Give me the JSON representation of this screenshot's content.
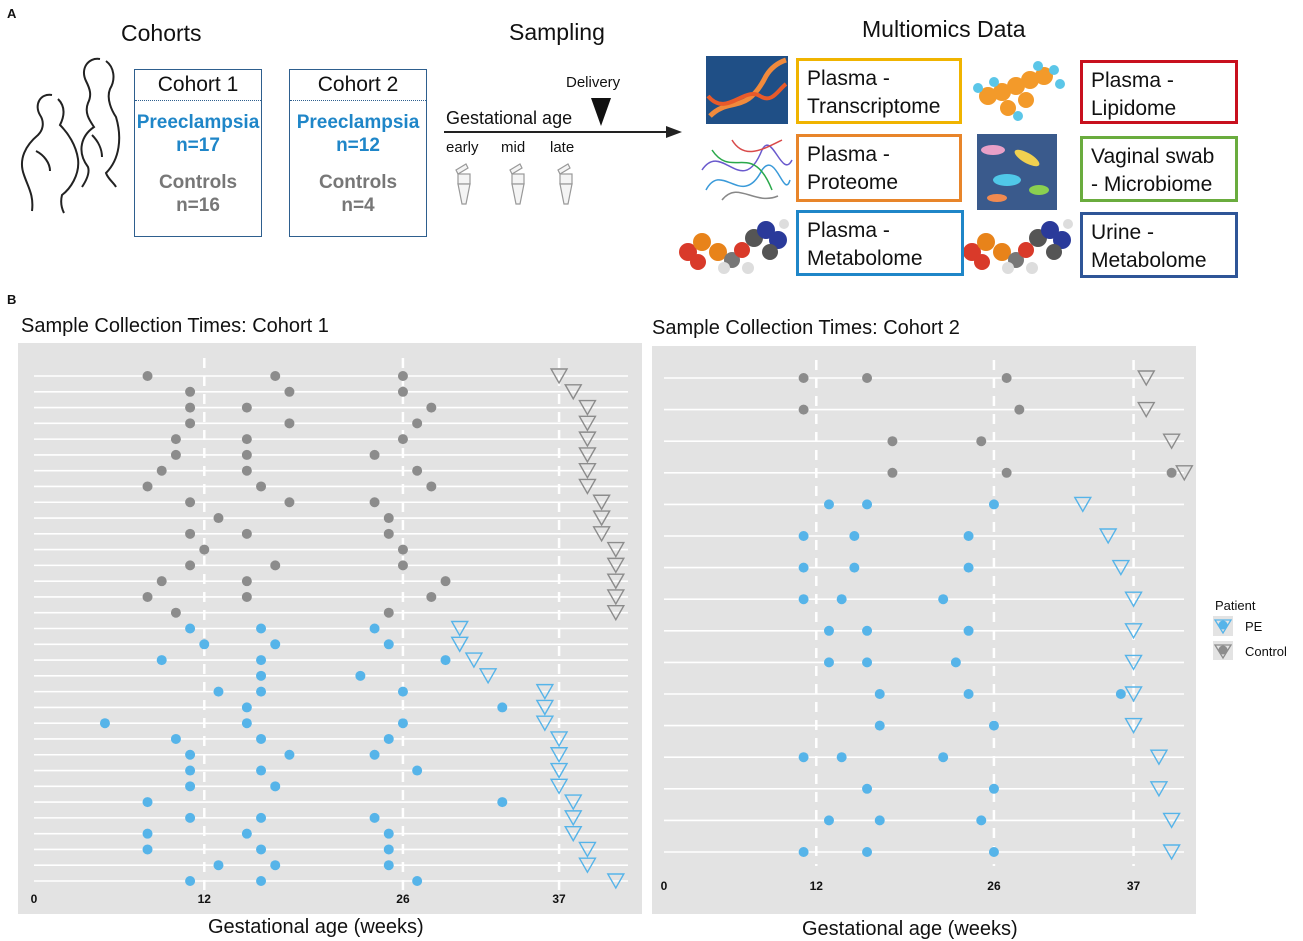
{
  "panel_a": {
    "letter": "A",
    "cohorts_title": "Cohorts",
    "sampling_title": "Sampling",
    "multiomics_title": "Multiomics Data",
    "cohort1": {
      "name": "Cohort 1",
      "pe_label": "Preeclampsia",
      "pe_n": "n=17",
      "ctrl_label": "Controls",
      "ctrl_n": "n=16"
    },
    "cohort2": {
      "name": "Cohort 2",
      "pe_label": "Preeclampsia",
      "pe_n": "n=12",
      "ctrl_label": "Controls",
      "ctrl_n": "n=4"
    },
    "timeline": {
      "delivery": "Delivery",
      "axis_label": "Gestational age",
      "early": "early",
      "mid": "mid",
      "late": "late"
    },
    "omics": [
      {
        "text": "Plasma -\nTranscriptome",
        "color": "#f0b400"
      },
      {
        "text": "Plasma -\nLipidome",
        "color": "#c8101e"
      },
      {
        "text": "Plasma -\nProteome",
        "color": "#e8852a"
      },
      {
        "text": "Vaginal swab\n- Microbiome",
        "color": "#6aac3e"
      },
      {
        "text": "Plasma -\nMetabolome",
        "color": "#1f86c8"
      },
      {
        "text": "Urine -\nMetabolome",
        "color": "#2e5597"
      }
    ]
  },
  "panel_b": {
    "letter": "B"
  },
  "chart_data": [
    {
      "type": "scatter",
      "title": "Sample Collection Times: Cohort 1",
      "xlabel": "Gestational age (weeks)",
      "ylabel": "",
      "xticks": [
        0,
        12,
        26,
        37
      ],
      "xlim": [
        0,
        42
      ],
      "grid": true,
      "rows": [
        {
          "group": "Control",
          "samples": [
            8,
            17,
            26
          ],
          "delivery": 37
        },
        {
          "group": "Control",
          "samples": [
            11,
            18,
            26
          ],
          "delivery": 38
        },
        {
          "group": "Control",
          "samples": [
            11,
            15,
            28
          ],
          "delivery": 39
        },
        {
          "group": "Control",
          "samples": [
            11,
            18,
            27
          ],
          "delivery": 39
        },
        {
          "group": "Control",
          "samples": [
            10,
            15,
            26
          ],
          "delivery": 39
        },
        {
          "group": "Control",
          "samples": [
            10,
            15,
            24
          ],
          "delivery": 39
        },
        {
          "group": "Control",
          "samples": [
            9,
            15,
            27
          ],
          "delivery": 39
        },
        {
          "group": "Control",
          "samples": [
            8,
            16,
            28
          ],
          "delivery": 39
        },
        {
          "group": "Control",
          "samples": [
            11,
            18,
            24
          ],
          "delivery": 40
        },
        {
          "group": "Control",
          "samples": [
            13,
            25
          ],
          "delivery": 40
        },
        {
          "group": "Control",
          "samples": [
            11,
            15,
            25
          ],
          "delivery": 40
        },
        {
          "group": "Control",
          "samples": [
            12,
            26
          ],
          "delivery": 41
        },
        {
          "group": "Control",
          "samples": [
            11,
            17,
            26
          ],
          "delivery": 41
        },
        {
          "group": "Control",
          "samples": [
            9,
            15,
            29
          ],
          "delivery": 41
        },
        {
          "group": "Control",
          "samples": [
            8,
            15,
            28
          ],
          "delivery": 41
        },
        {
          "group": "Control",
          "samples": [
            10,
            25
          ],
          "delivery": 41
        },
        {
          "group": "PE",
          "samples": [
            11,
            16,
            24
          ],
          "delivery": 30
        },
        {
          "group": "PE",
          "samples": [
            12,
            17,
            25
          ],
          "delivery": 30
        },
        {
          "group": "PE",
          "samples": [
            9,
            16,
            29
          ],
          "delivery": 31
        },
        {
          "group": "PE",
          "samples": [
            16,
            23
          ],
          "delivery": 32
        },
        {
          "group": "PE",
          "samples": [
            13,
            16,
            26
          ],
          "delivery": 36
        },
        {
          "group": "PE",
          "samples": [
            15,
            33
          ],
          "delivery": 36
        },
        {
          "group": "PE",
          "samples": [
            5,
            15,
            26
          ],
          "delivery": 36
        },
        {
          "group": "PE",
          "samples": [
            10,
            16,
            25
          ],
          "delivery": 37
        },
        {
          "group": "PE",
          "samples": [
            11,
            18,
            24
          ],
          "delivery": 37
        },
        {
          "group": "PE",
          "samples": [
            11,
            16,
            27
          ],
          "delivery": 37
        },
        {
          "group": "PE",
          "samples": [
            11,
            17
          ],
          "delivery": 37
        },
        {
          "group": "PE",
          "samples": [
            8,
            33
          ],
          "delivery": 38
        },
        {
          "group": "PE",
          "samples": [
            11,
            16,
            24
          ],
          "delivery": 38
        },
        {
          "group": "PE",
          "samples": [
            8,
            15,
            25
          ],
          "delivery": 38
        },
        {
          "group": "PE",
          "samples": [
            8,
            16,
            25
          ],
          "delivery": 39
        },
        {
          "group": "PE",
          "samples": [
            13,
            17,
            25
          ],
          "delivery": 39
        },
        {
          "group": "PE",
          "samples": [
            11,
            16,
            27
          ],
          "delivery": 41
        }
      ]
    },
    {
      "type": "scatter",
      "title": "Sample Collection Times: Cohort 2",
      "xlabel": "Gestational age (weeks)",
      "ylabel": "",
      "xticks": [
        0,
        12,
        26,
        37
      ],
      "xlim": [
        0,
        42
      ],
      "grid": true,
      "legend": {
        "title": "Patient",
        "position": "right",
        "entries": [
          {
            "label": "PE",
            "color": "#56b4e9"
          },
          {
            "label": "Control",
            "color": "#8c8c8c"
          }
        ]
      },
      "rows": [
        {
          "group": "Control",
          "samples": [
            11,
            16,
            27
          ],
          "delivery": 38
        },
        {
          "group": "Control",
          "samples": [
            11,
            28
          ],
          "delivery": 38
        },
        {
          "group": "Control",
          "samples": [
            18,
            25
          ],
          "delivery": 40
        },
        {
          "group": "Control",
          "samples": [
            18,
            27,
            40
          ],
          "delivery": 41
        },
        {
          "group": "PE",
          "samples": [
            13,
            16,
            26
          ],
          "delivery": 33
        },
        {
          "group": "PE",
          "samples": [
            11,
            15,
            24
          ],
          "delivery": 35
        },
        {
          "group": "PE",
          "samples": [
            11,
            15,
            24
          ],
          "delivery": 36
        },
        {
          "group": "PE",
          "samples": [
            11,
            14,
            22
          ],
          "delivery": 37
        },
        {
          "group": "PE",
          "samples": [
            13,
            16,
            24
          ],
          "delivery": 37
        },
        {
          "group": "PE",
          "samples": [
            13,
            16,
            23
          ],
          "delivery": 37
        },
        {
          "group": "PE",
          "samples": [
            17,
            24,
            36
          ],
          "delivery": 37
        },
        {
          "group": "PE",
          "samples": [
            17,
            26
          ],
          "delivery": 37
        },
        {
          "group": "PE",
          "samples": [
            11,
            14,
            22
          ],
          "delivery": 39
        },
        {
          "group": "PE",
          "samples": [
            16,
            26
          ],
          "delivery": 39
        },
        {
          "group": "PE",
          "samples": [
            13,
            17,
            25
          ],
          "delivery": 40
        },
        {
          "group": "PE",
          "samples": [
            11,
            16,
            26
          ],
          "delivery": 40
        }
      ]
    }
  ]
}
